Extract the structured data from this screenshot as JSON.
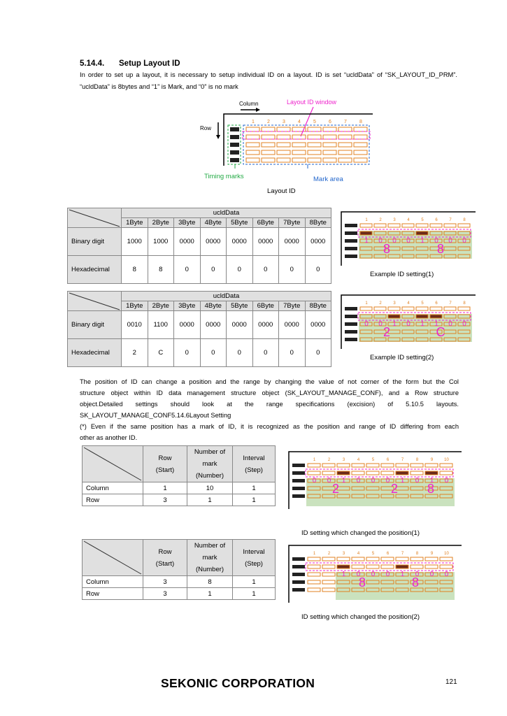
{
  "section": {
    "number": "5.14.4.",
    "title": "Setup Layout ID",
    "intro": "In order to set up a layout, it is necessary to setup individual ID on a layout. ID is set “ucldData” of “SK_LAYOUT_ID_PRM”. “ucldData” is 8bytes and “1” is Mark, and “0” is no mark"
  },
  "layout_diagram": {
    "column_label": "Column",
    "row_label": "Row",
    "window_label": "Layout ID window",
    "timing_label": "Timing marks",
    "mark_area_label": "Mark area",
    "caption": "Layout ID",
    "col_numbers": [
      "1",
      "2",
      "3",
      "4",
      "5",
      "6",
      "7",
      "8"
    ],
    "colors": {
      "window": "#ee22cc",
      "timing": "#22aa44",
      "mark_area": "#2266cc",
      "cells": "#e08020",
      "marks": "#222222"
    }
  },
  "table1": {
    "header_group": "ucldData",
    "bytes": [
      "1Byte",
      "2Byte",
      "3Byte",
      "4Byte",
      "5Byte",
      "6Byte",
      "7Byte",
      "8Byte"
    ],
    "row1_label": "Binary digit",
    "binary": [
      "1000",
      "1000",
      "0000",
      "0000",
      "0000",
      "0000",
      "0000",
      "0000"
    ],
    "row2_label": "Hexadecimal",
    "hex": [
      "8",
      "8",
      "0",
      "0",
      "0",
      "0",
      "0",
      "0"
    ],
    "caption": "Example ID setting(1)",
    "bits": [
      "1",
      "0",
      "0",
      "0",
      "1",
      "0",
      "0",
      "0"
    ],
    "hex_big": [
      "8",
      "8"
    ]
  },
  "table2": {
    "header_group": "ucldData",
    "bytes": [
      "1Byte",
      "2Byte",
      "3Byte",
      "4Byte",
      "5Byte",
      "6Byte",
      "7Byte",
      "8Byte"
    ],
    "row1_label": "Binary digit",
    "binary": [
      "0010",
      "1100",
      "0000",
      "0000",
      "0000",
      "0000",
      "0000",
      "0000"
    ],
    "row2_label": "Hexadecimal",
    "hex": [
      "2",
      "C",
      "0",
      "0",
      "0",
      "0",
      "0",
      "0"
    ],
    "caption": "Example ID setting(2)",
    "bits": [
      "0",
      "0",
      "1",
      "0",
      "1",
      "1",
      "0",
      "0"
    ],
    "hex_big": [
      "2",
      "C"
    ]
  },
  "paragraph": {
    "line1": "The position of ID can change a position and the range by changing the value of not corner of the form but the Col",
    "line2": "structure object within ID data management structure object (SK_LAYOUT_MANAGE_CONF), and a Row structure",
    "line3": "object.Detailed settings should look at the range specifications (excision) of 5.10.5 layouts.",
    "line4": "SK_LAYOUT_MANAGE_CONF5.14.6Layout Setting",
    "line5": "(*) Even if the same position has a mark of ID, it is recognized as the position and range of ID differing from each",
    "line6": "other as another ID."
  },
  "table3": {
    "h_row": "Row",
    "h_row_sub": "(Start)",
    "h_num1": "Number of",
    "h_num2": "mark",
    "h_num3": "(Number)",
    "h_int": "Interval",
    "h_int_sub": "(Step)",
    "r1_label": "Column",
    "r1": [
      "1",
      "10",
      "1"
    ],
    "r2_label": "Row",
    "r2": [
      "3",
      "1",
      "1"
    ],
    "caption": "ID setting which changed the position(1)",
    "col_numbers": [
      "1",
      "2",
      "3",
      "4",
      "5",
      "6",
      "7",
      "8",
      "9",
      "10"
    ],
    "bits": [
      "0",
      "0",
      "1",
      "0",
      "0",
      "0",
      "1",
      "0",
      "1",
      "0"
    ],
    "hex_big": [
      "2",
      "2",
      "8"
    ]
  },
  "table4": {
    "h_row": "Row",
    "h_row_sub": "(Start)",
    "h_num1": "Number of",
    "h_num2": "mark",
    "h_num3": "(Number)",
    "h_int": "Interval",
    "h_int_sub": "(Step)",
    "r1_label": "Column",
    "r1": [
      "3",
      "8",
      "1"
    ],
    "r2_label": "Row",
    "r2": [
      "3",
      "1",
      "1"
    ],
    "caption": "ID setting which changed the position(2)",
    "col_numbers": [
      "1",
      "2",
      "3",
      "4",
      "5",
      "6",
      "7",
      "8",
      "9",
      "10"
    ],
    "bits": [
      "1",
      "0",
      "0",
      "0",
      "1",
      "0",
      "0",
      "0"
    ],
    "hex_big": [
      "8",
      "8"
    ]
  },
  "footer": {
    "company": "SEKONIC CORPORATION",
    "page": "121"
  }
}
